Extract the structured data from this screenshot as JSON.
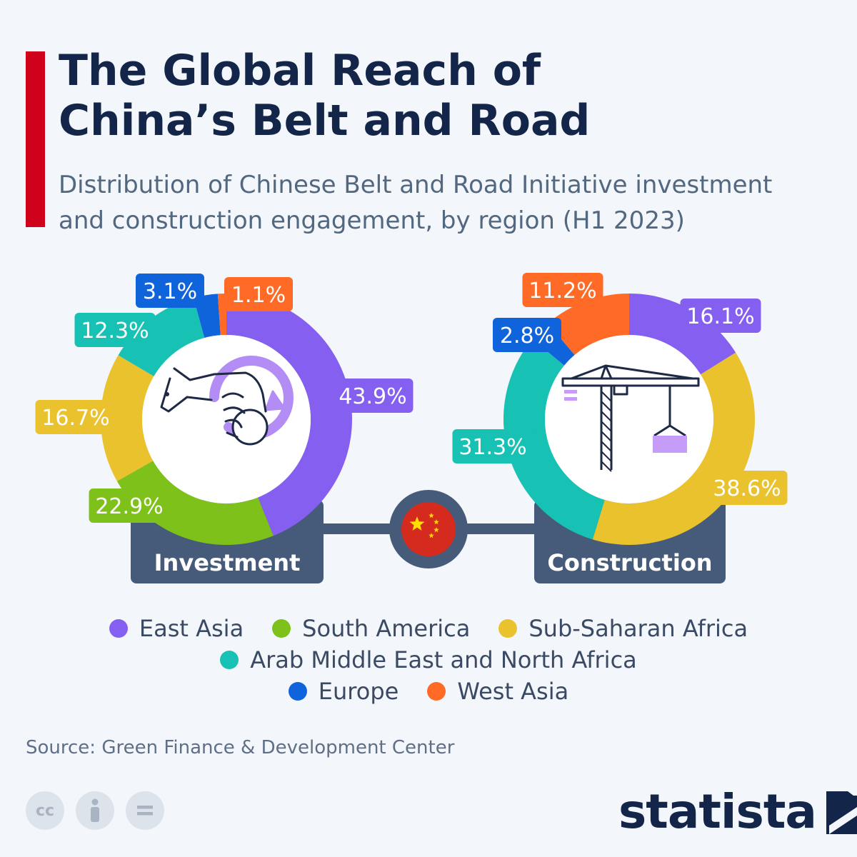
{
  "title_line1": "The Global Reach of",
  "title_line2": "China’s Belt and Road",
  "subtitle_line1": "Distribution of Chinese Belt and Road Initiative investment",
  "subtitle_line2": "and construction engagement, by region (H1 2023)",
  "source": "Source: Green Finance & Development Center",
  "brand": "statista",
  "colors": {
    "East Asia": "#8560f0",
    "South America": "#7ec11a",
    "Sub-Saharan Africa": "#e9c22e",
    "Arab Middle East and North Africa": "#17c1b3",
    "Europe": "#0f63db",
    "West Asia": "#ff6b26",
    "accent": "#d0021b",
    "label_box": "#465b79"
  },
  "legend_rows": [
    [
      "East Asia",
      "South America",
      "Sub-Saharan Africa"
    ],
    [
      "Arab Middle East and North Africa"
    ],
    [
      "Europe",
      "West Asia"
    ]
  ],
  "chart_data": [
    {
      "type": "pie",
      "title": "Investment",
      "unit": "%",
      "icon": "hand-coin-icon",
      "slices": [
        {
          "name": "East Asia",
          "value": 43.9,
          "label": "43.9%"
        },
        {
          "name": "South America",
          "value": 22.9,
          "label": "22.9%"
        },
        {
          "name": "Sub-Saharan Africa",
          "value": 16.7,
          "label": "16.7%"
        },
        {
          "name": "Arab Middle East and North Africa",
          "value": 12.3,
          "label": "12.3%"
        },
        {
          "name": "Europe",
          "value": 3.1,
          "label": "3.1%"
        },
        {
          "name": "West Asia",
          "value": 1.1,
          "label": "1.1%"
        }
      ]
    },
    {
      "type": "pie",
      "title": "Construction",
      "unit": "%",
      "icon": "crane-icon",
      "slices": [
        {
          "name": "East Asia",
          "value": 16.1,
          "label": "16.1%"
        },
        {
          "name": "Sub-Saharan Africa",
          "value": 38.6,
          "label": "38.6%"
        },
        {
          "name": "Arab Middle East and North Africa",
          "value": 31.3,
          "label": "31.3%"
        },
        {
          "name": "Europe",
          "value": 2.8,
          "label": "2.8%"
        },
        {
          "name": "West Asia",
          "value": 11.2,
          "label": "11.2%"
        }
      ]
    }
  ]
}
